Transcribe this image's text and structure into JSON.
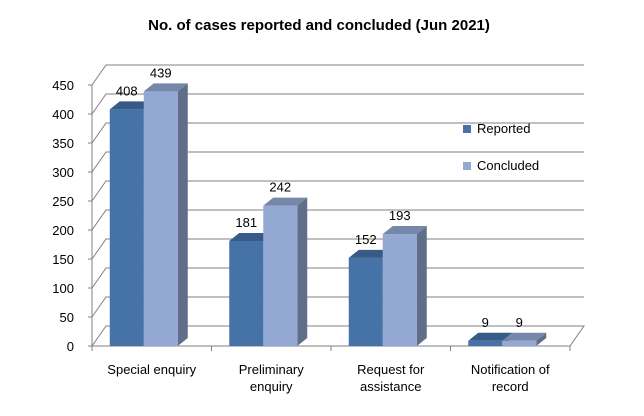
{
  "chart_data": {
    "type": "bar",
    "title": "No. of cases reported and concluded (Jun 2021)",
    "categories": [
      [
        "Special enquiry"
      ],
      [
        "Preliminary",
        "enquiry"
      ],
      [
        "Request for",
        "assistance"
      ],
      [
        "Notification of",
        "record"
      ]
    ],
    "series": [
      {
        "name": "Reported",
        "values": [
          408,
          181,
          152,
          9
        ],
        "color": "#4572A7"
      },
      {
        "name": "Concluded",
        "values": [
          439,
          242,
          193,
          9
        ],
        "color": "#93A9D4"
      }
    ],
    "ylim": [
      0,
      450
    ],
    "yticks": [
      0,
      50,
      100,
      150,
      200,
      250,
      300,
      350,
      400,
      450
    ],
    "grid": true,
    "legend_position": "right",
    "three_d": true
  }
}
